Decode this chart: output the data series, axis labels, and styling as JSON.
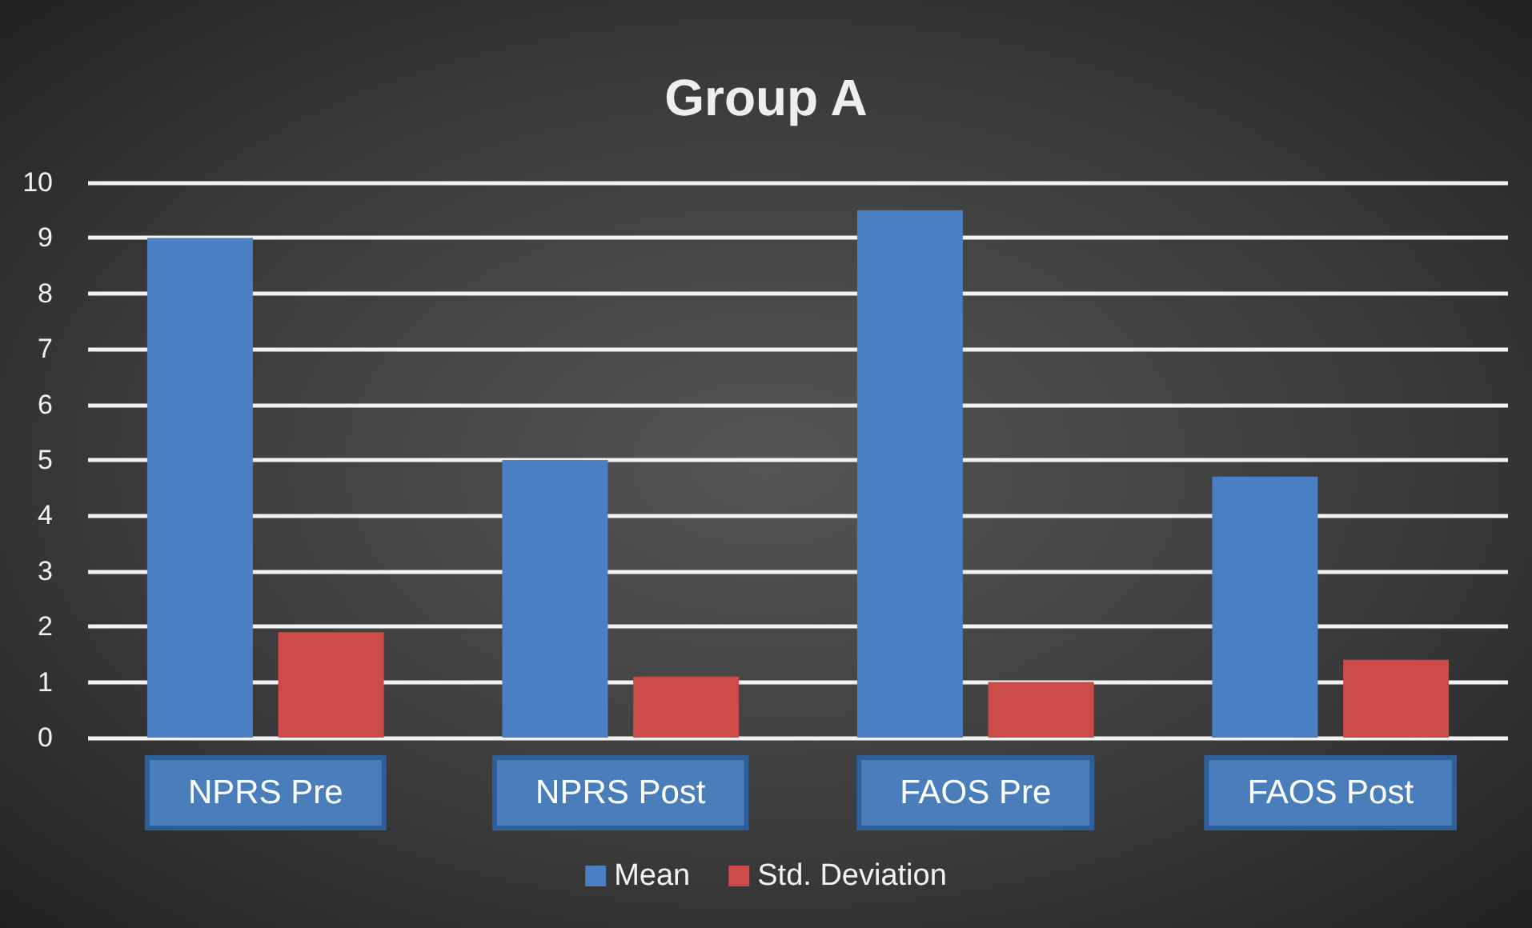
{
  "chart_data": {
    "type": "bar",
    "title": "Group A",
    "categories": [
      "NPRS Pre",
      "NPRS Post",
      "FAOS Pre",
      "FAOS Post"
    ],
    "series": [
      {
        "name": "Mean",
        "color": "#4a7fc4",
        "values": [
          9.0,
          5.0,
          9.5,
          4.7
        ]
      },
      {
        "name": "Std. Deviation",
        "color": "#cc4a47",
        "values": [
          1.9,
          1.1,
          1.0,
          1.4
        ]
      }
    ],
    "ylim": [
      0,
      10
    ],
    "yticks": [
      0,
      1,
      2,
      3,
      4,
      5,
      6,
      7,
      8,
      9,
      10
    ],
    "grid": "y",
    "legend": "bottom"
  }
}
